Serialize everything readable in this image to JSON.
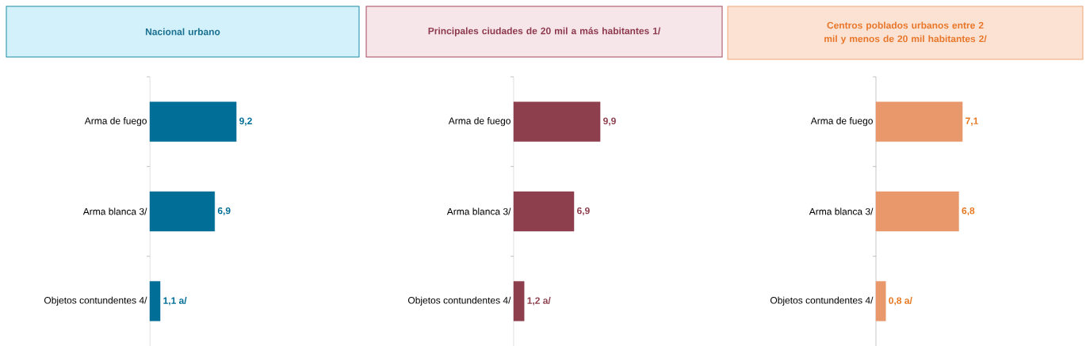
{
  "chart_data": [
    {
      "type": "bar",
      "orientation": "horizontal",
      "title": "Nacional urbano",
      "categories": [
        "Arma de fuego",
        "Arma blanca 3/",
        "Objetos contundentes 4/"
      ],
      "values": [
        9.2,
        6.9,
        1.1
      ],
      "value_labels": [
        "9,2",
        "6,9",
        "1,1 a/"
      ],
      "color": "#006e96"
    },
    {
      "type": "bar",
      "orientation": "horizontal",
      "title": "Principales ciudades de 20 mil a más habitantes 1/",
      "categories": [
        "Arma de fuego",
        "Arma blanca 3/",
        "Objetos contundentes 4/"
      ],
      "values": [
        9.9,
        6.9,
        1.2
      ],
      "value_labels": [
        "9,9",
        "6,9",
        "1,2 a/"
      ],
      "color": "#8e3f4e"
    },
    {
      "type": "bar",
      "orientation": "horizontal",
      "title": "Centros poblados urbanos entre 2 mil y menos de 20 mil habitantes 2/",
      "categories": [
        "Arma de fuego",
        "Arma blanca 3/",
        "Objetos contundentes 4/"
      ],
      "values": [
        7.1,
        6.8,
        0.8
      ],
      "value_labels": [
        "7,1",
        "6,8",
        "0,8 a/"
      ],
      "color": "#e8986a"
    }
  ]
}
